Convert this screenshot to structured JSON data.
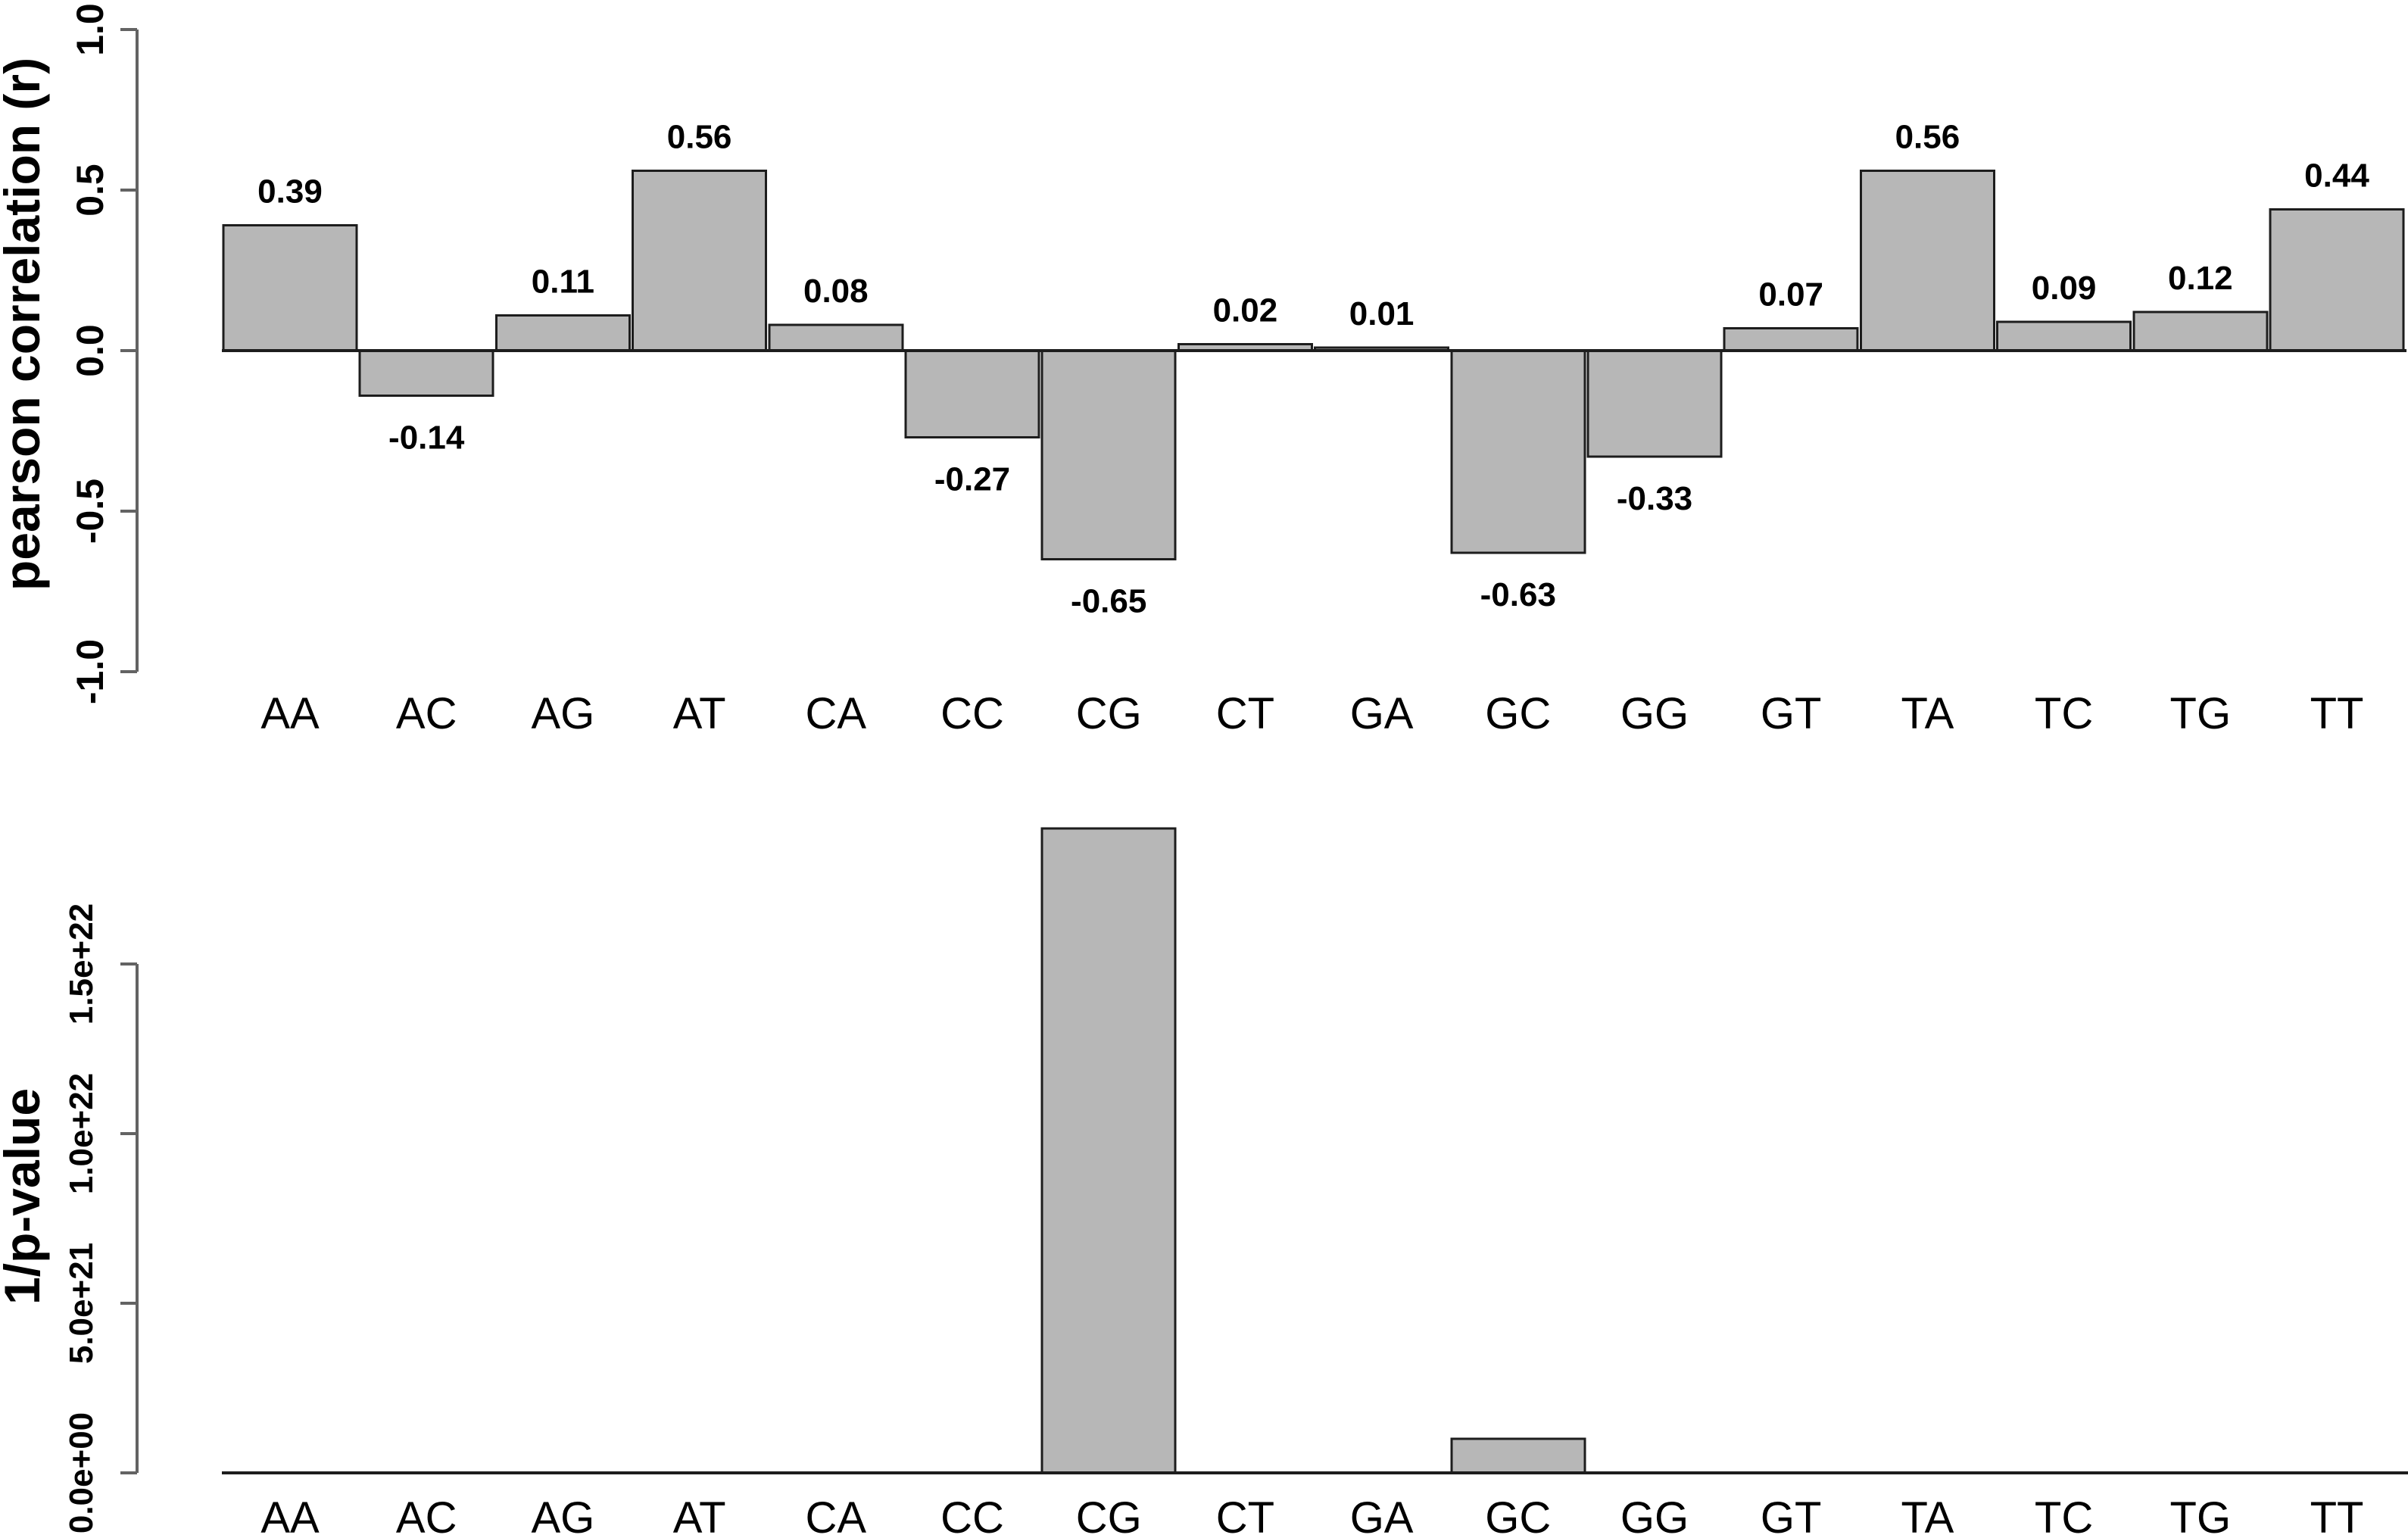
{
  "figure": {
    "background": "#ffffff",
    "bar_fill": "#b7b7b7",
    "bar_border": "#1d1d1d",
    "axis_color": "#636363",
    "baseline_color": "#1d1d1d",
    "text_color": "#000000"
  },
  "chart_data": [
    {
      "type": "bar",
      "panel": "top",
      "title": "",
      "xlabel": "",
      "ylabel": "pearson correlation (r)",
      "categories": [
        "AA",
        "AC",
        "AG",
        "AT",
        "CA",
        "CC",
        "CG",
        "CT",
        "GA",
        "GC",
        "GG",
        "GT",
        "TA",
        "TC",
        "TG",
        "TT"
      ],
      "values": [
        0.39,
        -0.14,
        0.11,
        0.56,
        0.08,
        -0.27,
        -0.65,
        0.02,
        0.01,
        -0.63,
        -0.33,
        0.07,
        0.56,
        0.09,
        0.12,
        0.44
      ],
      "value_labels": [
        "0.39",
        "-0.14",
        "0.11",
        "0.56",
        "0.08",
        "-0.27",
        "-0.65",
        "0.02",
        "0.01",
        "-0.63",
        "-0.33",
        "0.07",
        "0.56",
        "0.09",
        "0.12",
        "0.44"
      ],
      "yticks": [
        {
          "label": "1.0",
          "value": 1.0
        },
        {
          "label": "0.5",
          "value": 0.5
        },
        {
          "label": "0.0",
          "value": 0.0
        },
        {
          "label": "-0.5",
          "value": -0.5
        },
        {
          "label": "-1.0",
          "value": -1.0
        }
      ],
      "ylim": [
        -1.0,
        1.0
      ],
      "grid": false,
      "legend": null
    },
    {
      "type": "bar",
      "panel": "bottom",
      "title": "",
      "xlabel": "",
      "ylabel": "1/p-value",
      "categories": [
        "AA",
        "AC",
        "AG",
        "AT",
        "CA",
        "CC",
        "CG",
        "CT",
        "GA",
        "GC",
        "GG",
        "GT",
        "TA",
        "TC",
        "TG",
        "TT"
      ],
      "values": [
        0,
        0,
        0,
        0,
        0,
        0,
        1.9e+22,
        0,
        0,
        1e+21,
        0,
        0,
        0,
        0,
        0,
        0
      ],
      "value_labels": null,
      "yticks": [
        {
          "label": "0.0e+00",
          "value": 0
        },
        {
          "label": "5.0e+21",
          "value": 5e+21
        },
        {
          "label": "1.0e+22",
          "value": 1e+22
        },
        {
          "label": "1.5e+22",
          "value": 1.5e+22
        }
      ],
      "ylim": [
        0,
        1.5e+22
      ],
      "clip_to_axis": false,
      "grid": false,
      "legend": null
    }
  ]
}
